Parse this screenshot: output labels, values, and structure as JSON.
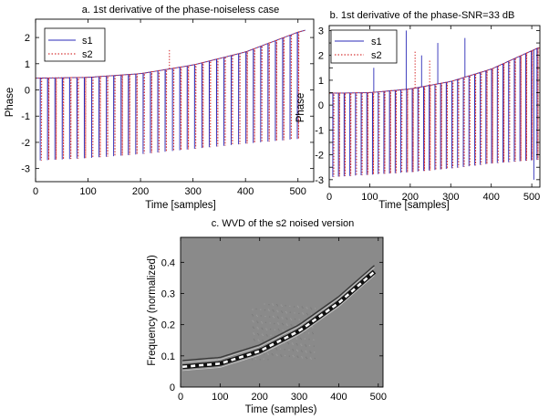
{
  "colors": {
    "s1": "#2b2bb8",
    "s2": "#d83a3a",
    "axis": "#000000",
    "wvd_bg": "#8a8a8a"
  },
  "chart_data": [
    {
      "id": "a",
      "type": "line",
      "title": "a. 1st derivative of the phase-noiseless case",
      "xlabel": "Time [samples]",
      "ylabel": "Phase",
      "xlim": [
        0,
        530
      ],
      "ylim": [
        -3.5,
        2.7
      ],
      "xticks": [
        0,
        100,
        200,
        300,
        400,
        500
      ],
      "yticks": [
        -3,
        -2,
        -1,
        0,
        1,
        2
      ],
      "grid": false,
      "legend_placement": "top-left",
      "spike_spacing": 14,
      "spike_range": [
        10,
        510
      ],
      "trend": {
        "x": [
          0,
          100,
          200,
          300,
          400,
          510
        ],
        "y": [
          0.45,
          0.48,
          0.62,
          0.95,
          1.45,
          2.28
        ]
      },
      "spike_bottom": {
        "x": [
          0,
          100,
          200,
          300,
          400,
          510
        ],
        "y": [
          -2.7,
          -2.6,
          -2.45,
          -2.25,
          -2.05,
          -1.85
        ]
      },
      "series": [
        {
          "name": "s1",
          "style": "solid"
        },
        {
          "name": "s2",
          "style": "dotted"
        }
      ],
      "outliers": [
        {
          "series": "s2",
          "x": 255,
          "y": 1.55
        }
      ]
    },
    {
      "id": "b",
      "type": "line",
      "title": "b. 1st derivative of the phase-SNR=33 dB",
      "xlabel": "Time [samples]",
      "ylabel": "Phase",
      "xlim": [
        0,
        520
      ],
      "ylim": [
        -3.3,
        3.2
      ],
      "xticks": [
        0,
        100,
        200,
        300,
        400,
        500
      ],
      "yticks": [
        -3,
        -2.5,
        -2,
        -1.5,
        -1,
        -0.5,
        0,
        0.5,
        1,
        1.5,
        2,
        2.5,
        3
      ],
      "grid": false,
      "legend_placement": "top-left",
      "spike_spacing": 14,
      "spike_range": [
        10,
        515
      ],
      "trend": {
        "x": [
          0,
          100,
          200,
          300,
          400,
          515
        ],
        "y": [
          0.48,
          0.5,
          0.65,
          0.95,
          1.45,
          2.3
        ]
      },
      "spike_bottom": {
        "x": [
          0,
          100,
          200,
          300,
          400,
          515
        ],
        "y": [
          -2.9,
          -2.8,
          -2.7,
          -2.55,
          -2.35,
          -2.2
        ]
      },
      "series": [
        {
          "name": "s1",
          "style": "solid"
        },
        {
          "name": "s2",
          "style": "dotted"
        }
      ],
      "outliers": [
        {
          "series": "s1",
          "x": 110,
          "y": 1.5
        },
        {
          "series": "s1",
          "x": 190,
          "y": 3.0
        },
        {
          "series": "s1",
          "x": 228,
          "y": 2.0
        },
        {
          "series": "s1",
          "x": 268,
          "y": 2.5
        },
        {
          "series": "s1",
          "x": 335,
          "y": 2.7
        },
        {
          "series": "s1",
          "x": 505,
          "y": -3.0
        },
        {
          "series": "s2",
          "x": 212,
          "y": 2.2
        },
        {
          "series": "s2",
          "x": 248,
          "y": 1.8
        }
      ]
    },
    {
      "id": "c",
      "type": "heatmap",
      "title": "c. WVD of the s2 noised version",
      "xlabel": "Time (samples)",
      "ylabel": "Frequency (normalized)",
      "xlim": [
        0,
        512
      ],
      "ylim": [
        0,
        0.48
      ],
      "xticks": [
        0,
        100,
        200,
        300,
        400,
        500
      ],
      "yticks": [
        0,
        0.1,
        0.2,
        0.3,
        0.4
      ],
      "grid": false,
      "ridge": {
        "x": [
          5,
          100,
          200,
          300,
          400,
          490
        ],
        "y": [
          0.065,
          0.075,
          0.115,
          0.18,
          0.27,
          0.37
        ]
      },
      "outer_ridge_offset": 0.02
    }
  ]
}
